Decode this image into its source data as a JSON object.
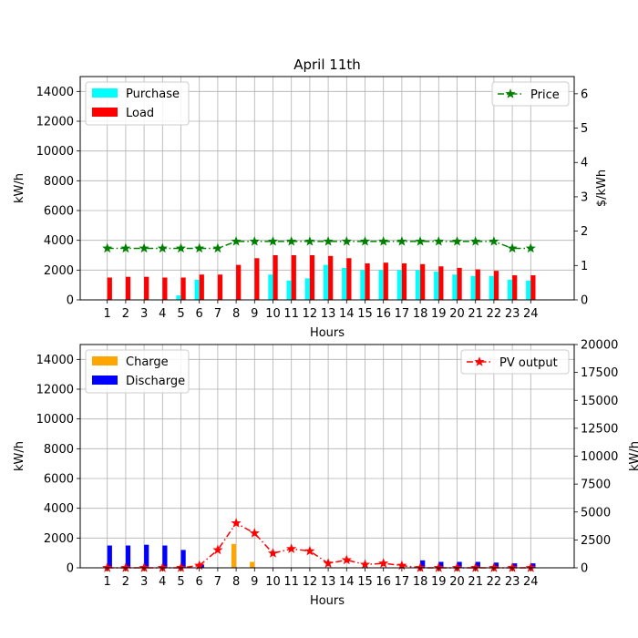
{
  "chart_data": [
    {
      "type": "bar",
      "title": "April 11th",
      "xlabel": "Hours",
      "ylabel": "kW/h",
      "y2label": "$/kWh",
      "categories": [
        "1",
        "2",
        "3",
        "4",
        "5",
        "6",
        "7",
        "8",
        "9",
        "10",
        "11",
        "12",
        "13",
        "14",
        "15",
        "16",
        "17",
        "18",
        "19",
        "20",
        "21",
        "22",
        "23",
        "24"
      ],
      "ylim": [
        0,
        15000
      ],
      "yticks": [
        "0",
        "2000",
        "4000",
        "6000",
        "8000",
        "10000",
        "12000",
        "14000"
      ],
      "y2lim": [
        0,
        6.5
      ],
      "y2ticks": [
        "0",
        "1",
        "2",
        "3",
        "4",
        "5",
        "6"
      ],
      "grid": true,
      "series": [
        {
          "name": "Purchase",
          "kind": "bar",
          "color": "#00ffff",
          "values": [
            0,
            0,
            0,
            0,
            300,
            1350,
            0,
            0,
            0,
            1700,
            1300,
            1450,
            2350,
            2150,
            2000,
            2000,
            2000,
            2000,
            1900,
            1700,
            1600,
            1600,
            1350,
            1300
          ]
        },
        {
          "name": "Load",
          "kind": "bar",
          "color": "#ff0000",
          "values": [
            1500,
            1550,
            1550,
            1500,
            1500,
            1700,
            1700,
            2350,
            2800,
            3000,
            3000,
            3000,
            2950,
            2800,
            2450,
            2500,
            2450,
            2400,
            2250,
            2150,
            2050,
            1950,
            1650,
            1650
          ]
        },
        {
          "name": "Price",
          "kind": "line",
          "axis": "right",
          "color": "#008000",
          "marker": "star",
          "linestyle": "dashdot",
          "values": [
            1.5,
            1.5,
            1.5,
            1.5,
            1.5,
            1.5,
            1.5,
            1.7,
            1.7,
            1.7,
            1.7,
            1.7,
            1.7,
            1.7,
            1.7,
            1.7,
            1.7,
            1.7,
            1.7,
            1.7,
            1.7,
            1.7,
            1.5,
            1.5
          ]
        }
      ],
      "legend_left": "upper-left",
      "legend_right": "upper-right"
    },
    {
      "type": "bar",
      "title": "",
      "xlabel": "Hours",
      "ylabel": "kW/h",
      "y2label": "kW/h",
      "categories": [
        "1",
        "2",
        "3",
        "4",
        "5",
        "6",
        "7",
        "8",
        "9",
        "10",
        "11",
        "12",
        "13",
        "14",
        "15",
        "16",
        "17",
        "18",
        "19",
        "20",
        "21",
        "22",
        "23",
        "24"
      ],
      "ylim": [
        0,
        15000
      ],
      "yticks": [
        "0",
        "2000",
        "4000",
        "6000",
        "8000",
        "10000",
        "12000",
        "14000"
      ],
      "y2lim": [
        0,
        20000
      ],
      "y2ticks": [
        "0",
        "2500",
        "5000",
        "7500",
        "10000",
        "12500",
        "15000",
        "17500",
        "20000"
      ],
      "grid": true,
      "series": [
        {
          "name": "Charge",
          "kind": "bar",
          "color": "#ffa500",
          "values": [
            0,
            0,
            0,
            0,
            0,
            0,
            0,
            1600,
            400,
            0,
            0,
            0,
            0,
            0,
            0,
            0,
            0,
            0,
            0,
            0,
            0,
            0,
            0,
            0
          ]
        },
        {
          "name": "Discharge",
          "kind": "bar",
          "color": "#0000ff",
          "values": [
            1500,
            1500,
            1550,
            1500,
            1200,
            200,
            0,
            0,
            0,
            0,
            0,
            0,
            0,
            0,
            0,
            0,
            0,
            500,
            400,
            400,
            400,
            350,
            300,
            300
          ]
        },
        {
          "name": "PV output",
          "kind": "line",
          "axis": "right",
          "color": "#ff0000",
          "marker": "star",
          "linestyle": "dashdot",
          "values": [
            0,
            0,
            0,
            0,
            0,
            200,
            1600,
            4000,
            3100,
            1300,
            1700,
            1500,
            400,
            700,
            300,
            400,
            200,
            0,
            0,
            0,
            0,
            0,
            0,
            0
          ]
        }
      ],
      "legend_left": "upper-left",
      "legend_right": "upper-right"
    }
  ]
}
